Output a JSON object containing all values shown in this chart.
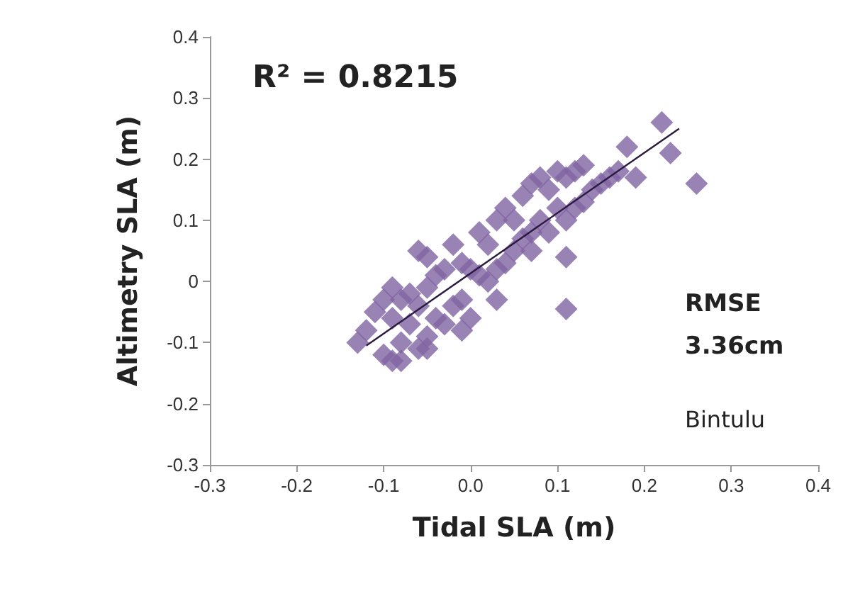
{
  "chart_data": {
    "type": "scatter",
    "xlabel": "Tidal SLA (m)",
    "ylabel": "Altimetry SLA (m)",
    "annotations": [
      "R² = 0.8215",
      "RMSE",
      "3.36cm",
      "Bintulu"
    ],
    "xlim": [
      -0.3,
      0.4
    ],
    "ylim": [
      -0.3,
      0.4
    ],
    "xticks": [
      -0.3,
      -0.2,
      {
        "value": -0.1,
        "label": "-0.1"
      },
      {
        "value": 0,
        "label": "0.0"
      },
      0.1,
      0.2,
      0.3,
      0.4
    ],
    "yticks": [
      -0.3,
      -0.2,
      -0.1,
      0,
      0.1,
      0.2,
      0.3,
      0.4
    ],
    "grid": false,
    "series": [
      {
        "marker": "diamond",
        "color": "#8064a2",
        "x": [
          -0.13,
          -0.12,
          -0.11,
          -0.1,
          -0.1,
          -0.09,
          -0.09,
          -0.08,
          -0.08,
          -0.08,
          -0.07,
          -0.07,
          -0.06,
          -0.06,
          -0.05,
          -0.05,
          -0.05,
          -0.04,
          -0.04,
          -0.03,
          -0.03,
          -0.02,
          -0.02,
          -0.01,
          -0.01,
          0,
          0,
          0.01,
          0.01,
          0.02,
          0.02,
          0.03,
          0.03,
          0.04,
          0.04,
          0.05,
          0.05,
          0.06,
          0.06,
          0.07,
          0.07,
          0.08,
          0.08,
          0.09,
          0.09,
          0.1,
          0.1,
          0.11,
          0.11,
          0.12,
          0.12,
          0.13,
          0.13,
          0.14,
          0.15,
          0.16,
          0.17,
          0.18,
          0.19,
          0.22,
          0.23,
          0.26,
          0.11,
          0.11,
          -0.05,
          -0.01,
          0.03,
          0.07,
          -0.09,
          -0.06
        ],
        "values": [
          -0.1,
          -0.08,
          -0.05,
          -0.12,
          -0.03,
          -0.13,
          -0.06,
          -0.1,
          -0.03,
          -0.13,
          -0.07,
          -0.02,
          -0.11,
          -0.04,
          -0.09,
          -0.01,
          0.04,
          -0.06,
          0.01,
          -0.07,
          0.02,
          -0.04,
          0.06,
          -0.03,
          0.03,
          -0.06,
          0.02,
          0.01,
          0.08,
          0.0,
          0.06,
          0.02,
          0.1,
          0.03,
          0.12,
          0.05,
          0.1,
          0.07,
          0.14,
          0.08,
          0.16,
          0.1,
          0.17,
          0.08,
          0.15,
          0.12,
          0.18,
          0.1,
          0.17,
          0.12,
          0.18,
          0.13,
          0.19,
          0.15,
          0.16,
          0.17,
          0.18,
          0.22,
          0.17,
          0.26,
          0.21,
          0.16,
          0.04,
          -0.045,
          -0.11,
          -0.08,
          -0.03,
          0.05,
          -0.01,
          0.05
        ]
      },
      {
        "type": "line",
        "marker": "none",
        "color": "#2a1a40",
        "x": [
          -0.12,
          0.24
        ],
        "values": [
          -0.105,
          0.25
        ]
      }
    ]
  }
}
